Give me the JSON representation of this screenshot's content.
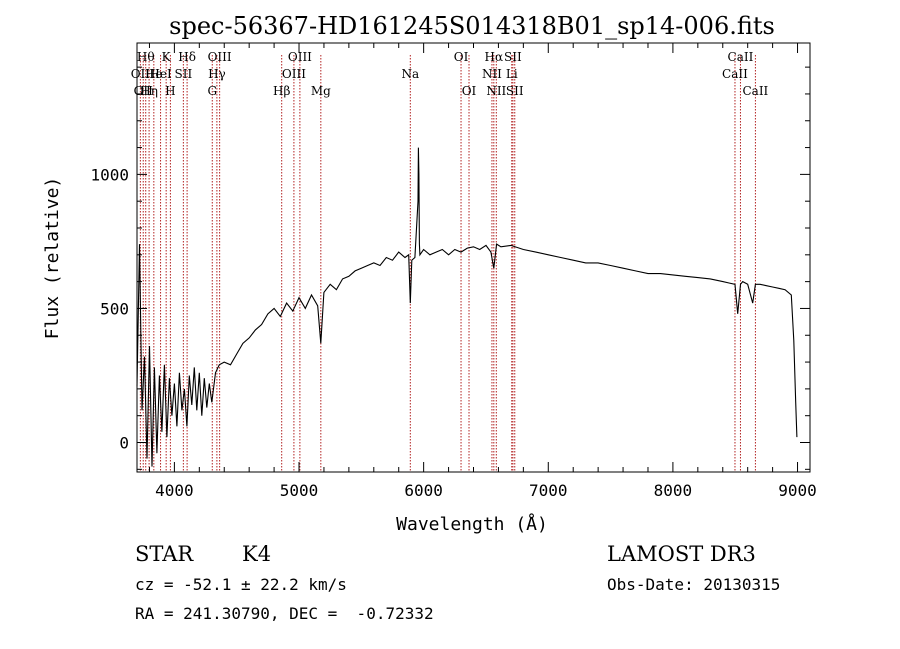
{
  "chart_data": {
    "type": "line",
    "title": "spec-56367-HD161245S014318B01_sp14-006.fits",
    "xlabel": "Wavelength (Å)",
    "ylabel": "Flux (relative)",
    "xlim": [
      3700,
      9100
    ],
    "ylim": [
      -110,
      1490
    ],
    "x_ticks": [
      4000,
      5000,
      6000,
      7000,
      8000,
      9000
    ],
    "y_ticks": [
      0,
      500,
      1000
    ],
    "x_tick_labels": [
      "4000",
      "5000",
      "6000",
      "7000",
      "8000",
      "9000"
    ],
    "y_tick_labels": [
      "0",
      "500",
      "1000"
    ],
    "grid": false,
    "line_color": "#000000",
    "marker_line_color": "#b22222",
    "series": [
      {
        "x": [
          3700,
          3720,
          3740,
          3760,
          3780,
          3800,
          3820,
          3840,
          3860,
          3880,
          3900,
          3920,
          3940,
          3960,
          3980,
          4000,
          4020,
          4040,
          4060,
          4080,
          4100,
          4120,
          4140,
          4160,
          4180,
          4200,
          4220,
          4240,
          4260,
          4280,
          4300,
          4330,
          4360,
          4400,
          4450,
          4500,
          4550,
          4600,
          4650,
          4700,
          4750,
          4800,
          4850,
          4900,
          4950,
          5000,
          5050,
          5100,
          5150,
          5175,
          5200,
          5250,
          5300,
          5350,
          5400,
          5450,
          5500,
          5550,
          5600,
          5650,
          5700,
          5750,
          5800,
          5850,
          5880,
          5893,
          5905,
          5930,
          5955,
          5958,
          5962,
          5966,
          5970,
          6000,
          6050,
          6100,
          6150,
          6200,
          6250,
          6300,
          6350,
          6400,
          6450,
          6500,
          6540,
          6563,
          6585,
          6620,
          6700,
          6800,
          6900,
          7000,
          7100,
          7200,
          7300,
          7400,
          7500,
          7600,
          7700,
          7800,
          7900,
          8000,
          8100,
          8200,
          8300,
          8400,
          8450,
          8498,
          8520,
          8542,
          8560,
          8600,
          8640,
          8662,
          8700,
          8750,
          8800,
          8850,
          8900,
          8950,
          8970,
          8985,
          8995
        ],
        "y": [
          210,
          740,
          120,
          320,
          -60,
          360,
          -90,
          280,
          -40,
          250,
          40,
          290,
          20,
          240,
          100,
          220,
          60,
          260,
          120,
          200,
          60,
          250,
          140,
          280,
          120,
          260,
          100,
          240,
          130,
          220,
          150,
          260,
          290,
          300,
          290,
          330,
          370,
          390,
          420,
          440,
          480,
          500,
          470,
          520,
          490,
          540,
          500,
          550,
          510,
          370,
          560,
          590,
          570,
          610,
          620,
          640,
          650,
          660,
          670,
          660,
          690,
          680,
          710,
          690,
          700,
          520,
          680,
          690,
          900,
          1100,
          1000,
          740,
          700,
          720,
          700,
          710,
          720,
          700,
          720,
          710,
          725,
          730,
          720,
          735,
          710,
          650,
          740,
          730,
          735,
          720,
          710,
          700,
          690,
          680,
          670,
          670,
          660,
          650,
          640,
          630,
          630,
          625,
          620,
          615,
          610,
          600,
          595,
          590,
          480,
          590,
          600,
          590,
          520,
          590,
          590,
          585,
          580,
          575,
          570,
          550,
          380,
          150,
          20
        ]
      }
    ],
    "line_markers": [
      {
        "wavelength": 3727,
        "label": "OII",
        "row": 2
      },
      {
        "wavelength": 3750,
        "label": "OII",
        "row": 3
      },
      {
        "wavelength": 3770,
        "label": "Hθ",
        "row": 1
      },
      {
        "wavelength": 3797,
        "label": "Hη",
        "row": 3
      },
      {
        "wavelength": 3835,
        "label": "He",
        "row": 2
      },
      {
        "wavelength": 3889,
        "label": "HeI",
        "row": 2
      },
      {
        "wavelength": 3934,
        "label": "K",
        "row": 1
      },
      {
        "wavelength": 3968,
        "label": "H",
        "row": 3
      },
      {
        "wavelength": 4072,
        "label": "SII",
        "row": 2
      },
      {
        "wavelength": 4102,
        "label": "Hδ",
        "row": 1
      },
      {
        "wavelength": 4304,
        "label": "G",
        "row": 3
      },
      {
        "wavelength": 4341,
        "label": "Hγ",
        "row": 2
      },
      {
        "wavelength": 4363,
        "label": "OIII",
        "row": 1
      },
      {
        "wavelength": 4861,
        "label": "Hβ",
        "row": 3
      },
      {
        "wavelength": 4959,
        "label": "OIII",
        "row": 2
      },
      {
        "wavelength": 5007,
        "label": "OIII",
        "row": 1
      },
      {
        "wavelength": 5175,
        "label": "Mg",
        "row": 3
      },
      {
        "wavelength": 5893,
        "label": "Na",
        "row": 2
      },
      {
        "wavelength": 6300,
        "label": "OI",
        "row": 1
      },
      {
        "wavelength": 6364,
        "label": "OI",
        "row": 3
      },
      {
        "wavelength": 6548,
        "label": "NII",
        "row": 2
      },
      {
        "wavelength": 6563,
        "label": "Hα",
        "row": 1
      },
      {
        "wavelength": 6583,
        "label": "NII",
        "row": 3
      },
      {
        "wavelength": 6707,
        "label": "Li",
        "row": 2
      },
      {
        "wavelength": 6716,
        "label": "SII",
        "row": 1
      },
      {
        "wavelength": 6731,
        "label": "SII",
        "row": 3
      },
      {
        "wavelength": 8498,
        "label": "CaII",
        "row": 2
      },
      {
        "wavelength": 8542,
        "label": "CaII",
        "row": 1
      },
      {
        "wavelength": 8662,
        "label": "CaII",
        "row": 3
      }
    ]
  },
  "info": {
    "object_class": "STAR",
    "subclass": "K4",
    "survey": "LAMOST DR3",
    "redshift_text": "cz = -52.1 ± 22.2 km/s",
    "obs_date": "Obs-Date: 20130315",
    "coords": "RA = 241.30790, DEC =  -0.72332"
  }
}
